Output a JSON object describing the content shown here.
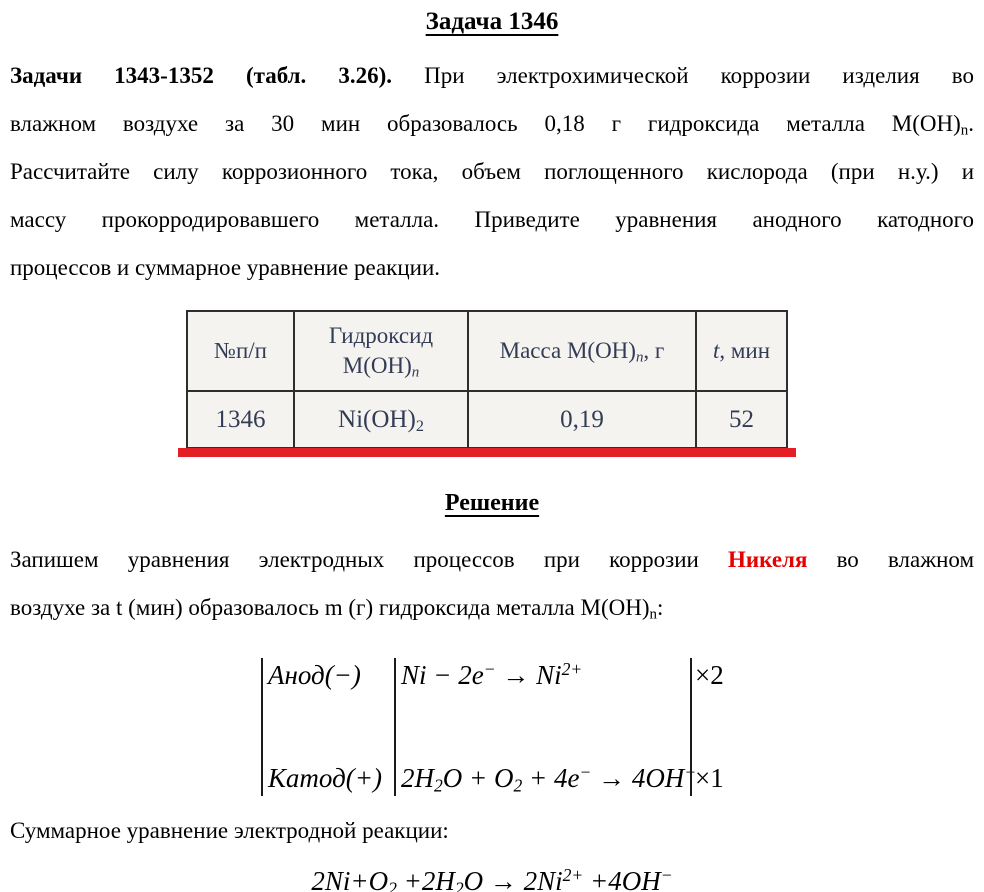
{
  "colors": {
    "highlight_red": "#e60000",
    "red_bar": "#e31e24",
    "table_text": "#333c55"
  },
  "title": "Задача 1346",
  "problem": {
    "line1_bold": "Задачи 1343-1352 (табл. 3.26).",
    "line1_rest": "При электрохимической коррозии изделия во",
    "line2_pre": "влажном воздухе за 30 мин образовалось 0,18 г гидроксида металла M(OH)",
    "line2_sub": "n",
    "line2_post": ".",
    "line3": "Рассчитайте силу коррозионного тока, объем поглощенного кислорода (при н.у.) и",
    "line4": "массу прокорродировавшего металла. Приведите уравнения анодного катодного",
    "line5": "процессов и суммарное уравнение реакции."
  },
  "table": {
    "col1_header": "№п/п",
    "col2_header_line1": "Гидроксид",
    "col2_header_formula": "M(OH)",
    "col2_header_sub": "n",
    "col3_header_pre": "Масса M(OH)",
    "col3_header_sub": "n",
    "col3_header_post": ", г",
    "col4_header_italic": "t",
    "col4_header_post": ", мин",
    "row": {
      "number": "1346",
      "hydroxide_pre": "Ni(OH)",
      "hydroxide_sub": "2",
      "mass": "0,19",
      "time": "52"
    }
  },
  "solution": {
    "heading": "Решение",
    "line1_pre": "Запишем уравнения электродных процессов при коррозии",
    "line1_red": "Никеля",
    "line1_post": "во влажном",
    "line2_pre": "воздухе за t (мин) образовалось m (г) гидроксида металла M(OH)",
    "line2_sub": "n",
    "line2_post": ":"
  },
  "equations": {
    "anode": {
      "label": "Анод(−)",
      "eq_p1": "Ni − 2e",
      "eq_sup1": "−",
      "eq_p2": " → Ni",
      "eq_sup2": "2+",
      "mult": "×2"
    },
    "cathode": {
      "label": "Катод(+)",
      "eq_p1": "2H",
      "eq_sub1": "2",
      "eq_p2": "O + O",
      "eq_sub2": "2",
      "eq_p3": " + 4e",
      "eq_sup1": "−",
      "eq_p4": " → 4OH",
      "eq_sup2": "−",
      "mult": "×1"
    }
  },
  "summary": {
    "label": "Суммарное уравнение электродной реакции:",
    "eq_p1": "2Ni+O",
    "eq_sub1": "2",
    "eq_p2": " +2H",
    "eq_sub2": "2",
    "eq_p3": "O → 2Ni",
    "eq_sup1": "2+",
    "eq_p4": " +4OH",
    "eq_sup2": "−"
  }
}
